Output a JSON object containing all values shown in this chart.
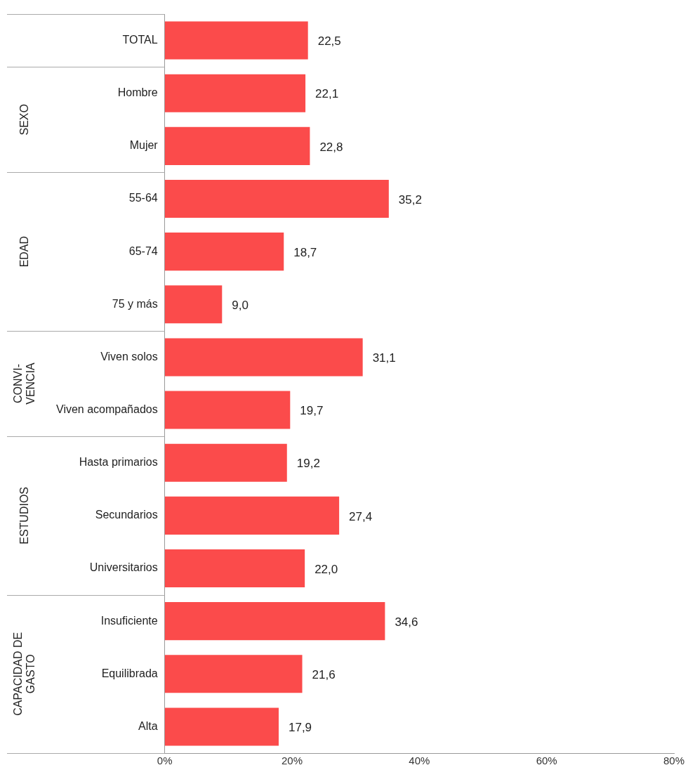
{
  "chart_data": {
    "type": "bar",
    "orientation": "horizontal",
    "categories": [
      "TOTAL",
      "Hombre",
      "Mujer",
      "55-64",
      "65-74",
      "75 y más",
      "Viven solos",
      "Viven acompañados",
      "Hasta primarios",
      "Secundarios",
      "Universitarios",
      "Insuficiente",
      "Equilibrada",
      "Alta"
    ],
    "values": [
      22.5,
      22.1,
      22.8,
      35.2,
      18.7,
      9.0,
      31.1,
      19.7,
      19.2,
      27.4,
      22.0,
      34.6,
      21.6,
      17.9
    ],
    "value_labels": [
      "22,5",
      "22,1",
      "22,8",
      "35,2",
      "18,7",
      "9,0",
      "31,1",
      "19,7",
      "19,2",
      "27,4",
      "22,0",
      "34,6",
      "21,6",
      "17,9"
    ],
    "color": "#fb4b4b",
    "xlim": [
      0,
      80
    ],
    "xticks": [
      {
        "value": 0,
        "label": "0%"
      },
      {
        "value": 20,
        "label": "20%"
      },
      {
        "value": 40,
        "label": "40%"
      },
      {
        "value": 60,
        "label": "60%"
      },
      {
        "value": 80,
        "label": "80%"
      }
    ],
    "grid": false,
    "legend": false,
    "annotations": [
      "SEXO",
      "EDAD",
      "CONVI-VENCIA",
      "ESTUDIOS",
      "CAPACIDAD DE GASTO"
    ]
  }
}
